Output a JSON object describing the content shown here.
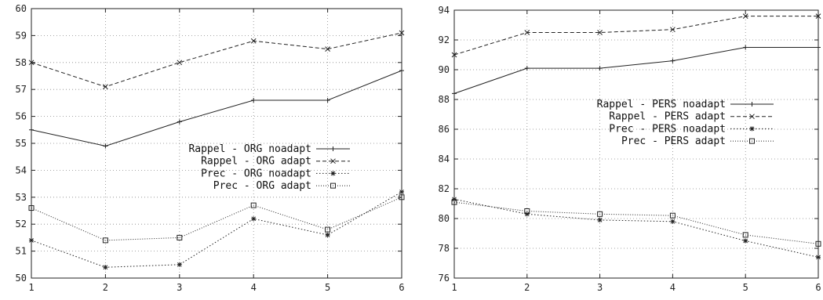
{
  "chart_data": [
    {
      "type": "line",
      "x": [
        1,
        2,
        3,
        4,
        5,
        6
      ],
      "xlim": [
        1,
        6
      ],
      "ylim": [
        50,
        60
      ],
      "xticks": [
        "1",
        "2",
        "3",
        "4",
        "5",
        "6"
      ],
      "yticks": [
        "50",
        "51",
        "52",
        "53",
        "54",
        "55",
        "56",
        "57",
        "58",
        "59",
        "60"
      ],
      "grid": true,
      "legend_position": "center-right",
      "series": [
        {
          "name": "Rappel - ORG noadapt",
          "values": [
            55.5,
            54.9,
            55.8,
            56.6,
            56.6,
            57.7
          ],
          "style": "solid",
          "marker": "plus"
        },
        {
          "name": "Rappel - ORG adapt",
          "values": [
            58.0,
            57.1,
            58.0,
            58.8,
            58.5,
            59.1
          ],
          "style": "dashed",
          "marker": "cross"
        },
        {
          "name": "Prec - ORG noadapt",
          "values": [
            51.4,
            50.4,
            50.5,
            52.2,
            51.6,
            53.2
          ],
          "style": "dotted",
          "marker": "star"
        },
        {
          "name": "Prec - ORG adapt",
          "values": [
            52.6,
            51.4,
            51.5,
            52.7,
            51.8,
            53.0
          ],
          "style": "dashdot",
          "marker": "square"
        }
      ]
    },
    {
      "type": "line",
      "x": [
        1,
        2,
        3,
        4,
        5,
        6
      ],
      "xlim": [
        1,
        6
      ],
      "ylim": [
        76,
        94
      ],
      "xticks": [
        "1",
        "2",
        "3",
        "4",
        "5",
        "6"
      ],
      "yticks": [
        "76",
        "78",
        "80",
        "82",
        "84",
        "86",
        "88",
        "90",
        "92",
        "94"
      ],
      "grid": true,
      "legend_position": "center",
      "series": [
        {
          "name": "Rappel - PERS noadapt",
          "values": [
            88.4,
            90.1,
            90.1,
            90.6,
            91.5,
            91.5
          ],
          "style": "solid",
          "marker": "plus"
        },
        {
          "name": "Rappel - PERS adapt",
          "values": [
            91.0,
            92.5,
            92.5,
            92.7,
            93.6,
            93.6
          ],
          "style": "dashed",
          "marker": "cross"
        },
        {
          "name": "Prec - PERS noadapt",
          "values": [
            81.3,
            80.3,
            79.9,
            79.8,
            78.5,
            77.4
          ],
          "style": "dotted",
          "marker": "star"
        },
        {
          "name": "Prec - PERS adapt",
          "values": [
            81.1,
            80.5,
            80.3,
            80.2,
            78.9,
            78.3
          ],
          "style": "dashdot",
          "marker": "square"
        }
      ]
    }
  ]
}
